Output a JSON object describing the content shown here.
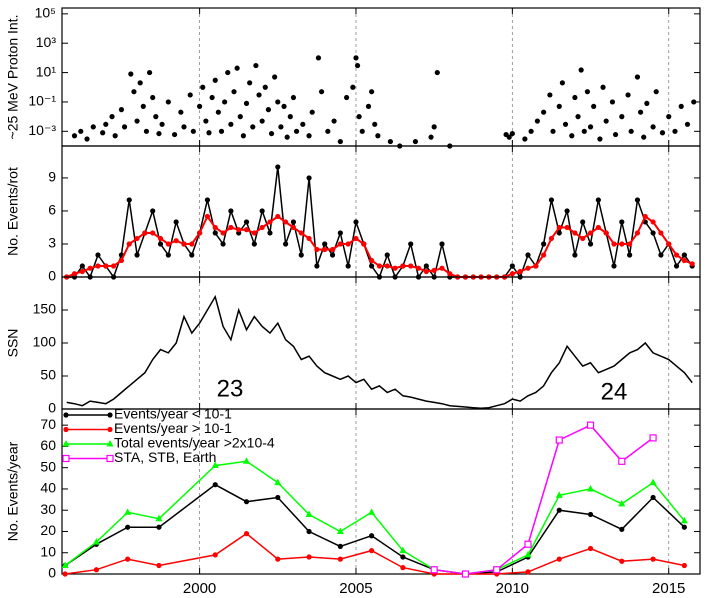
{
  "chart_data": [
    {
      "type": "scatter",
      "y_label": "~25 MeV Proton Int.",
      "ylog": true,
      "xlim": [
        1995.6,
        2016.0
      ],
      "xticks": [
        2000,
        2005,
        2010,
        2015
      ],
      "grid": true,
      "ylim": [
        0.0001,
        250000
      ],
      "yticks": [
        {
          "value": 100000,
          "label": "10⁵"
        },
        {
          "value": 1000,
          "label": "10³"
        },
        {
          "value": 10,
          "label": "10¹"
        },
        {
          "value": 0.1,
          "label": "10⁻¹"
        },
        {
          "value": 0.001,
          "label": "10⁻³"
        }
      ],
      "x": [
        1996.0,
        1996.2,
        1996.4,
        1996.6,
        1996.9,
        1997.0,
        1997.2,
        1997.3,
        1997.5,
        1997.6,
        1997.8,
        1997.9,
        1998.0,
        1998.1,
        1998.2,
        1998.3,
        1998.4,
        1998.5,
        1998.6,
        1998.7,
        1998.8,
        1999.0,
        1999.2,
        1999.4,
        1999.5,
        1999.7,
        1999.8,
        2000.0,
        2000.1,
        2000.2,
        2000.3,
        2000.4,
        2000.5,
        2000.6,
        2000.7,
        2000.8,
        2000.9,
        2001.0,
        2001.1,
        2001.2,
        2001.3,
        2001.4,
        2001.5,
        2001.6,
        2001.7,
        2001.8,
        2001.9,
        2002.0,
        2002.1,
        2002.2,
        2002.3,
        2002.4,
        2002.5,
        2002.6,
        2002.7,
        2002.8,
        2002.9,
        2003.0,
        2003.1,
        2003.3,
        2003.5,
        2003.6,
        2003.8,
        2003.9,
        2004.1,
        2004.3,
        2004.5,
        2004.7,
        2004.9,
        2005.0,
        2005.05,
        2005.1,
        2005.2,
        2005.4,
        2005.5,
        2005.6,
        2005.7,
        2006.1,
        2006.4,
        2006.9,
        2007.4,
        2007.5,
        2007.6,
        2008.0,
        2009.8,
        2009.9,
        2010.0,
        2010.4,
        2010.6,
        2010.8,
        2011.0,
        2011.2,
        2011.3,
        2011.5,
        2011.6,
        2011.7,
        2011.9,
        2012.0,
        2012.1,
        2012.2,
        2012.3,
        2012.4,
        2012.5,
        2012.6,
        2012.8,
        2012.9,
        2013.0,
        2013.2,
        2013.3,
        2013.5,
        2013.7,
        2013.8,
        2014.0,
        2014.1,
        2014.2,
        2014.3,
        2014.5,
        2014.6,
        2014.8,
        2015.0,
        2015.2,
        2015.4,
        2015.6,
        2015.8
      ],
      "series": [
        {
          "color": "#000000",
          "values": [
            0.0005,
            0.001,
            0.0003,
            0.002,
            0.0008,
            0.003,
            0.01,
            0.0005,
            0.03,
            0.002,
            8,
            0.5,
            0.005,
            2,
            0.05,
            0.001,
            10,
            0.2,
            0.01,
            0.0007,
            0.003,
            0.1,
            0.0006,
            0.02,
            0.002,
            0.3,
            0.001,
            0.05,
            1,
            0.005,
            0.0008,
            0.2,
            3,
            0.02,
            0.001,
            0.1,
            10,
            0.003,
            0.5,
            20,
            0.01,
            0.0005,
            0.08,
            2,
            0.002,
            30,
            0.3,
            0.005,
            1,
            0.03,
            0.0007,
            5,
            0.1,
            0.002,
            0.05,
            0.0004,
            0.01,
            0.2,
            0.001,
            0.003,
            0.0005,
            0.02,
            100,
            0.5,
            0.001,
            0.005,
            0.0002,
            0.2,
            1,
            100,
            30,
            0.01,
            0.001,
            0.05,
            0.5,
            0.003,
            0.0005,
            0.0002,
            0.0001,
            0.0002,
            0.0004,
            0.002,
            10,
            0.0001,
            0.0006,
            0.0004,
            0.0007,
            0.0003,
            0.001,
            0.005,
            0.02,
            0.3,
            0.001,
            0.05,
            2,
            0.003,
            0.0005,
            0.2,
            0.01,
            15,
            0.001,
            0.5,
            0.002,
            0.05,
            0.0003,
            1,
            0.005,
            0.1,
            0.0006,
            0.01,
            0.3,
            0.001,
            5,
            0.02,
            0.0004,
            0.08,
            0.002,
            0.5,
            0.0008,
            0.01,
            0.001,
            0.05,
            0.003,
            0.1
          ]
        }
      ]
    },
    {
      "type": "line",
      "y_label": "No. Events/rot",
      "xlim": [
        1995.6,
        2016.0
      ],
      "xticks": [
        2000,
        2005,
        2010,
        2015
      ],
      "grid": true,
      "ylim": [
        0,
        11.9
      ],
      "yticks": [
        0,
        3,
        6,
        9
      ],
      "x": [
        1995.75,
        1996,
        1996.25,
        1996.5,
        1996.75,
        1997,
        1997.25,
        1997.5,
        1997.75,
        1998,
        1998.25,
        1998.5,
        1998.75,
        1999,
        1999.25,
        1999.5,
        1999.75,
        2000,
        2000.25,
        2000.5,
        2000.75,
        2001,
        2001.25,
        2001.5,
        2001.75,
        2002,
        2002.25,
        2002.5,
        2002.75,
        2003,
        2003.25,
        2003.5,
        2003.75,
        2004,
        2004.25,
        2004.5,
        2004.75,
        2005,
        2005.25,
        2005.5,
        2005.75,
        2006,
        2006.25,
        2006.5,
        2006.75,
        2007,
        2007.25,
        2007.5,
        2007.75,
        2008,
        2008.25,
        2008.5,
        2008.75,
        2009,
        2009.25,
        2009.5,
        2009.75,
        2010,
        2010.25,
        2010.5,
        2010.75,
        2011,
        2011.25,
        2011.5,
        2011.75,
        2012,
        2012.25,
        2012.5,
        2012.75,
        2013,
        2013.25,
        2013.5,
        2013.75,
        2014,
        2014.25,
        2014.5,
        2014.75,
        2015,
        2015.25,
        2015.5,
        2015.75
      ],
      "series": [
        {
          "color": "#000000",
          "marker": "circle",
          "values": [
            0,
            0,
            1,
            0,
            2,
            1,
            0,
            2,
            7,
            2,
            4,
            6,
            3,
            2,
            5,
            3,
            2,
            4,
            7,
            4,
            3,
            6,
            4,
            5,
            3,
            6,
            4,
            10,
            3,
            5,
            2,
            9,
            1,
            3,
            2,
            4,
            1,
            5,
            3,
            1,
            0,
            2,
            0,
            1,
            3,
            0,
            1,
            0,
            3,
            0,
            0,
            0,
            0,
            0,
            0,
            0,
            0,
            1,
            0,
            2,
            1,
            3,
            7,
            4,
            6,
            2,
            5,
            3,
            7,
            4,
            1,
            5,
            2,
            7,
            5,
            4,
            2,
            3,
            1,
            2,
            1
          ]
        },
        {
          "color": "#ff0000",
          "marker": "circle",
          "values": [
            0,
            0.3,
            0.5,
            0.8,
            1,
            1,
            1,
            1.5,
            3,
            3.5,
            4,
            4,
            3.5,
            3,
            3.3,
            3,
            3,
            4,
            5.5,
            4.5,
            4,
            4.5,
            4.3,
            4.3,
            4,
            4.5,
            5,
            5.5,
            5,
            4.5,
            4,
            3.5,
            2.5,
            2.5,
            2.5,
            3,
            3,
            3.5,
            3,
            1.5,
            1,
            1,
            0.8,
            1,
            1,
            0.8,
            0.5,
            0.6,
            0.8,
            0.3,
            0,
            0,
            0,
            0,
            0,
            0,
            0,
            0.3,
            0.5,
            0.8,
            1,
            2,
            3.5,
            4.5,
            4.5,
            4,
            3.5,
            4,
            4.5,
            4,
            3,
            3,
            3,
            4,
            5.5,
            5,
            4,
            3,
            2,
            1.5,
            1.2
          ]
        }
      ]
    },
    {
      "type": "line",
      "y_label": "SSN",
      "xlim": [
        1995.6,
        2016.0
      ],
      "xticks": [
        2000,
        2005,
        2010,
        2015
      ],
      "grid": true,
      "ylim": [
        0,
        200
      ],
      "yticks": [
        0,
        50,
        100,
        150
      ],
      "annotations": [
        "23",
        "24"
      ],
      "x": [
        1995.75,
        1996,
        1996.25,
        1996.5,
        1996.75,
        1997,
        1997.25,
        1997.5,
        1997.75,
        1998,
        1998.25,
        1998.5,
        1998.75,
        1999,
        1999.25,
        1999.5,
        1999.75,
        2000,
        2000.25,
        2000.5,
        2000.75,
        2001,
        2001.25,
        2001.5,
        2001.75,
        2002,
        2002.25,
        2002.5,
        2002.75,
        2003,
        2003.25,
        2003.5,
        2003.75,
        2004,
        2004.25,
        2004.5,
        2004.75,
        2005,
        2005.25,
        2005.5,
        2005.75,
        2006,
        2006.25,
        2006.5,
        2006.75,
        2007,
        2007.25,
        2007.5,
        2007.75,
        2008,
        2008.25,
        2008.5,
        2008.75,
        2009,
        2009.25,
        2009.5,
        2009.75,
        2010,
        2010.25,
        2010.5,
        2010.75,
        2011,
        2011.25,
        2011.5,
        2011.75,
        2012,
        2012.25,
        2012.5,
        2012.75,
        2013,
        2013.25,
        2013.5,
        2013.75,
        2014,
        2014.25,
        2014.5,
        2014.75,
        2015,
        2015.25,
        2015.5,
        2015.75
      ],
      "series": [
        {
          "color": "#000000",
          "values": [
            10,
            8,
            5,
            12,
            10,
            8,
            15,
            25,
            35,
            45,
            55,
            75,
            90,
            85,
            100,
            140,
            115,
            130,
            150,
            170,
            125,
            105,
            150,
            120,
            140,
            125,
            115,
            130,
            105,
            95,
            75,
            80,
            65,
            55,
            50,
            45,
            50,
            40,
            45,
            30,
            35,
            25,
            30,
            20,
            18,
            15,
            12,
            10,
            8,
            5,
            4,
            3,
            2,
            1,
            2,
            5,
            8,
            15,
            12,
            20,
            25,
            35,
            55,
            70,
            95,
            80,
            65,
            70,
            55,
            60,
            65,
            75,
            85,
            90,
            100,
            85,
            80,
            75,
            65,
            55,
            40
          ]
        }
      ]
    },
    {
      "type": "line",
      "y_label": "No. Events/year",
      "legend": "upper left",
      "xlim": [
        1995.6,
        2016.0
      ],
      "xticks": [
        2000,
        2005,
        2010,
        2015
      ],
      "grid": true,
      "ylim": [
        0,
        77.6
      ],
      "yticks": [
        0,
        10,
        20,
        30,
        40,
        50,
        60,
        70
      ],
      "x": [
        1995.7,
        1996.7,
        1997.7,
        1998.7,
        2000.5,
        2001.5,
        2002.5,
        2003.5,
        2004.5,
        2005.5,
        2006.5,
        2007.5,
        2008.5,
        2009.5,
        2010.5,
        2011.5,
        2012.5,
        2013.5,
        2014.5,
        2015.5
      ],
      "series": [
        {
          "name": "Events/year < 10-1",
          "color": "#000000",
          "marker": "circle",
          "values": [
            4,
            14,
            22,
            22,
            42,
            34,
            36,
            20,
            13,
            18,
            8,
            2,
            0,
            1,
            8,
            30,
            28,
            21,
            36,
            22
          ]
        },
        {
          "name": "Events/year > 10-1",
          "color": "#ff0000",
          "marker": "circle",
          "values": [
            0,
            2,
            7,
            4,
            9,
            19,
            7,
            8,
            7,
            11,
            3,
            0,
            0,
            0,
            1,
            7,
            12,
            6,
            7,
            4
          ]
        },
        {
          "name": "Total events/year >2x10-4",
          "color": "#00ff00",
          "marker": "triangle",
          "values": [
            4,
            15,
            29,
            26,
            51,
            53,
            43,
            28,
            20,
            29,
            11,
            2,
            0,
            2,
            9,
            37,
            40,
            33,
            43,
            25
          ]
        },
        {
          "name": "STA, STB, Earth",
          "color": "#ff00ff",
          "marker": "square-open",
          "values": [
            null,
            null,
            null,
            null,
            null,
            null,
            null,
            null,
            null,
            null,
            null,
            2,
            0,
            2,
            14,
            63,
            70,
            53,
            64,
            null
          ]
        }
      ]
    }
  ]
}
